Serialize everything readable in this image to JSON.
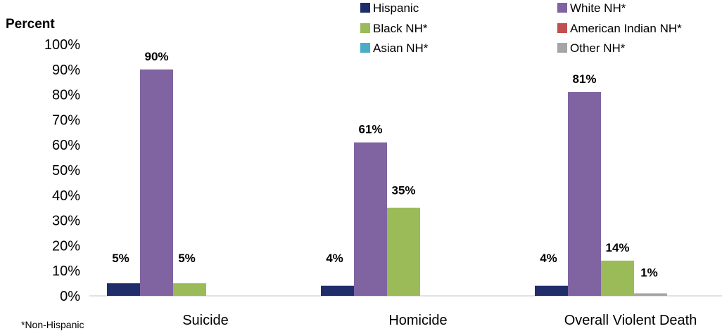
{
  "chart_data": {
    "type": "bar",
    "ylabel": "Percent",
    "ylim": [
      0,
      100
    ],
    "yticks": [
      "0%",
      "10%",
      "20%",
      "30%",
      "40%",
      "50%",
      "60%",
      "70%",
      "80%",
      "90%",
      "100%"
    ],
    "categories": [
      "Suicide",
      "Homicide",
      "Overall Violent Death"
    ],
    "series": [
      {
        "name": "Hispanic",
        "color": "#1f2d6b",
        "values": [
          5,
          4,
          4
        ],
        "labels": [
          "5%",
          "4%",
          "4%"
        ]
      },
      {
        "name": "White NH*",
        "color": "#8064a2",
        "values": [
          90,
          61,
          81
        ],
        "labels": [
          "90%",
          "61%",
          "81%"
        ]
      },
      {
        "name": "Black NH*",
        "color": "#9bbb59",
        "values": [
          5,
          35,
          14
        ],
        "labels": [
          "5%",
          "",
          "14%"
        ]
      },
      {
        "name": "American Indian NH*",
        "color": "#c0504d",
        "values": [
          0,
          0,
          0
        ],
        "labels": [
          "",
          "",
          ""
        ]
      },
      {
        "name": "Asian NH*",
        "color": "#4bacc6",
        "values": [
          0,
          0,
          0
        ],
        "labels": [
          "",
          "",
          ""
        ]
      },
      {
        "name": "Other NH*",
        "color": "#a5a5a5",
        "values": [
          0,
          0,
          1
        ],
        "labels": [
          "",
          "",
          "1%"
        ]
      }
    ],
    "extra_labels": [
      {
        "category": 1,
        "series": 2,
        "text": "35%"
      }
    ],
    "legend_position": "top-right",
    "grid": false
  },
  "footnote": "*Non-Hispanic"
}
